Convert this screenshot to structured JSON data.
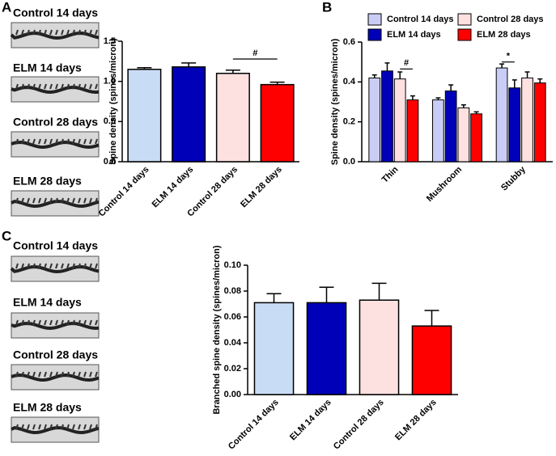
{
  "panels": [
    "A",
    "B",
    "C"
  ],
  "images": {
    "A": [
      "Control 14 days",
      "ELM 14 days",
      "Control 28 days",
      "ELM 28 days"
    ],
    "C": [
      "Control 14 days",
      "ELM 14 days",
      "Control 28 days",
      "ELM 28 days"
    ]
  },
  "chart_data": [
    {
      "type": "bar",
      "y_label": "Spine density (spines/micron)",
      "categories": [
        "Control 14 days",
        "ELM 14 days",
        "Control 28 days",
        "ELM 28 days"
      ],
      "values": [
        1.15,
        1.18,
        1.1,
        0.96
      ],
      "errors": [
        0.02,
        0.05,
        0.04,
        0.03
      ],
      "colors": [
        "#c9dcf5",
        "#0000b8",
        "#fde0e0",
        "#ff0000"
      ],
      "ylim": [
        0,
        1.5
      ],
      "yticks": [
        {
          "value": 0,
          "label": "0.0"
        },
        0.5,
        {
          "value": 1,
          "label": "1.0"
        },
        1.5
      ],
      "annotations": [
        "#"
      ]
    },
    {
      "type": "grouped-bar",
      "y_label": "Spine density (spines/micron)",
      "categories": [
        "Thin",
        "Mushroom",
        "Stubby"
      ],
      "series": [
        {
          "name": "Control 14 days",
          "color": "#c9cdf5",
          "values": [
            0.42,
            0.31,
            0.47
          ],
          "errors": [
            0.015,
            0.01,
            0.02
          ]
        },
        {
          "name": "ELM 14 days",
          "color": "#0000b8",
          "values": [
            0.455,
            0.355,
            0.37
          ],
          "errors": [
            0.04,
            0.03,
            0.04
          ]
        },
        {
          "name": "Control 28 days",
          "color": "#fde0e0",
          "values": [
            0.415,
            0.27,
            0.42
          ],
          "errors": [
            0.035,
            0.015,
            0.03
          ]
        },
        {
          "name": "ELM 28 days",
          "color": "#ff0000",
          "values": [
            0.31,
            0.24,
            0.395
          ],
          "errors": [
            0.02,
            0.01,
            0.02
          ]
        }
      ],
      "ylim": [
        0,
        0.6
      ],
      "yticks": [
        {
          "value": 0,
          "label": "0.0"
        },
        0.2,
        0.4,
        0.6
      ],
      "annotations": [
        "#",
        "*"
      ]
    },
    {
      "type": "bar",
      "y_label": "Branched spine density (spines/micron)",
      "categories": [
        "Control 14 days",
        "ELM 14 days",
        "Control 28 days",
        "ELM 28 days"
      ],
      "values": [
        0.071,
        0.071,
        0.073,
        0.053
      ],
      "errors": [
        0.007,
        0.012,
        0.013,
        0.012
      ],
      "colors": [
        "#c9dcf5",
        "#0000b8",
        "#fde0e0",
        "#ff0000"
      ],
      "ylim": [
        0,
        0.1
      ],
      "yticks": [
        {
          "value": 0,
          "label": "0.00"
        },
        0.02,
        0.04,
        0.06,
        0.08,
        {
          "value": 0.1,
          "label": "0.10"
        }
      ]
    }
  ]
}
